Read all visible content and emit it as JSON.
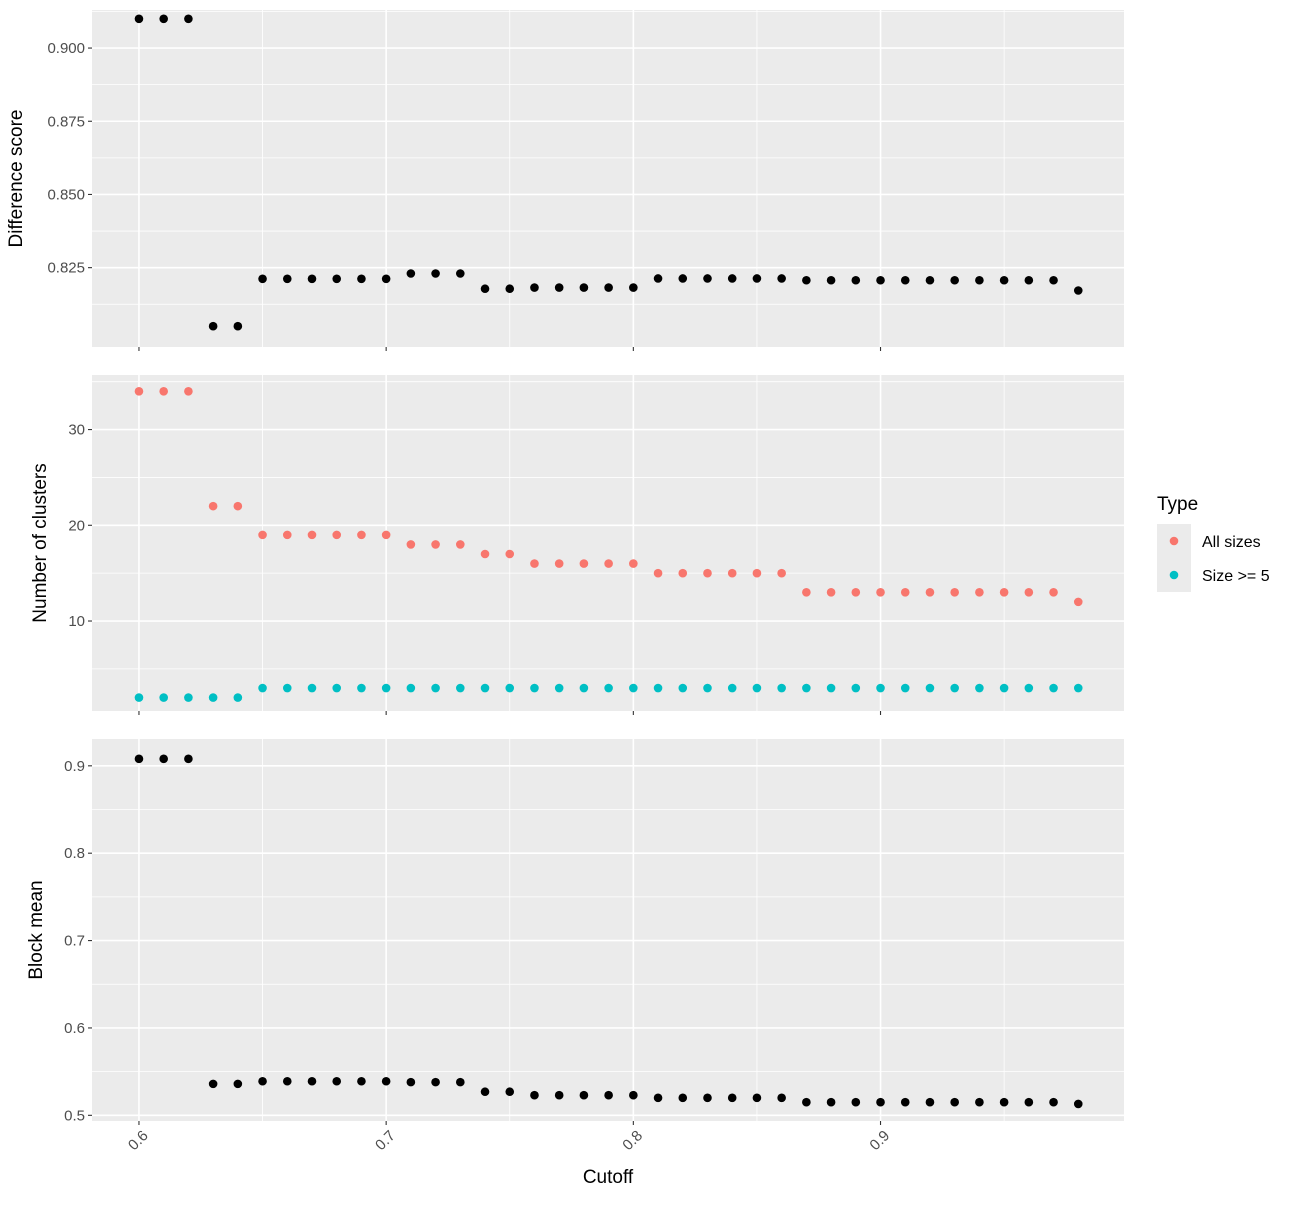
{
  "chart_data": {
    "type": "scatter",
    "xlabel": "Cutoff",
    "x_tick_labels": [
      "0.6",
      "0.7",
      "0.8",
      "0.9"
    ],
    "x_ticks": [
      0.6,
      0.7,
      0.8,
      0.9
    ],
    "xlim": [
      0.581,
      0.9985
    ],
    "grid": true,
    "legend": {
      "title": "Type",
      "placement": "right",
      "entries": [
        {
          "label": "All sizes",
          "color": "#F8766D"
        },
        {
          "label": "Size >= 5",
          "color": "#00BFC4"
        }
      ]
    },
    "colors": {
      "panel_background": "#EBEBEB",
      "grid": "#FFFFFF",
      "points": "#000000",
      "all_sizes": "#F8766D",
      "size_ge_5": "#00BFC4"
    },
    "panels": [
      {
        "ylabel": "Difference score",
        "ylim": [
          0.7979,
          0.913
        ],
        "y_ticks": [
          0.825,
          0.85,
          0.875,
          0.9
        ],
        "y_tick_labels": [
          "0.825",
          "0.850",
          "0.875",
          "0.900"
        ],
        "series": [
          {
            "color": "#000000",
            "x": [
              0.6,
              0.61,
              0.62,
              0.63,
              0.64,
              0.65,
              0.66,
              0.67,
              0.68,
              0.69,
              0.7,
              0.71,
              0.72,
              0.73,
              0.74,
              0.75,
              0.76,
              0.77,
              0.78,
              0.79,
              0.8,
              0.81,
              0.82,
              0.83,
              0.84,
              0.85,
              0.86,
              0.87,
              0.88,
              0.89,
              0.9,
              0.91,
              0.92,
              0.93,
              0.94,
              0.95,
              0.96,
              0.97,
              0.98
            ],
            "y": [
              0.91,
              0.91,
              0.91,
              0.805,
              0.805,
              0.8212,
              0.8212,
              0.8212,
              0.8212,
              0.8212,
              0.8212,
              0.823,
              0.823,
              0.823,
              0.8178,
              0.8178,
              0.8182,
              0.8182,
              0.8182,
              0.8182,
              0.8182,
              0.8213,
              0.8213,
              0.8213,
              0.8213,
              0.8213,
              0.8213,
              0.8207,
              0.8207,
              0.8207,
              0.8207,
              0.8207,
              0.8207,
              0.8207,
              0.8207,
              0.8207,
              0.8207,
              0.8207,
              0.8172
            ]
          }
        ]
      },
      {
        "ylabel": "Number of clusters",
        "ylim": [
          0.6,
          35.7
        ],
        "y_ticks": [
          10,
          20,
          30
        ],
        "y_tick_labels": [
          "10",
          "20",
          "30"
        ],
        "series": [
          {
            "name": "All sizes",
            "color": "#F8766D",
            "x": [
              0.6,
              0.61,
              0.62,
              0.63,
              0.64,
              0.65,
              0.66,
              0.67,
              0.68,
              0.69,
              0.7,
              0.71,
              0.72,
              0.73,
              0.74,
              0.75,
              0.76,
              0.77,
              0.78,
              0.79,
              0.8,
              0.81,
              0.82,
              0.83,
              0.84,
              0.85,
              0.86,
              0.87,
              0.88,
              0.89,
              0.9,
              0.91,
              0.92,
              0.93,
              0.94,
              0.95,
              0.96,
              0.97,
              0.98
            ],
            "y": [
              34,
              34,
              34,
              22,
              22,
              19,
              19,
              19,
              19,
              19,
              19,
              18,
              18,
              18,
              17,
              17,
              16,
              16,
              16,
              16,
              16,
              15,
              15,
              15,
              15,
              15,
              15,
              13,
              13,
              13,
              13,
              13,
              13,
              13,
              13,
              13,
              13,
              13,
              12
            ]
          },
          {
            "name": "Size >= 5",
            "color": "#00BFC4",
            "x": [
              0.6,
              0.61,
              0.62,
              0.63,
              0.64,
              0.65,
              0.66,
              0.67,
              0.68,
              0.69,
              0.7,
              0.71,
              0.72,
              0.73,
              0.74,
              0.75,
              0.76,
              0.77,
              0.78,
              0.79,
              0.8,
              0.81,
              0.82,
              0.83,
              0.84,
              0.85,
              0.86,
              0.87,
              0.88,
              0.89,
              0.9,
              0.91,
              0.92,
              0.93,
              0.94,
              0.95,
              0.96,
              0.97,
              0.98
            ],
            "y": [
              2,
              2,
              2,
              2,
              2,
              3,
              3,
              3,
              3,
              3,
              3,
              3,
              3,
              3,
              3,
              3,
              3,
              3,
              3,
              3,
              3,
              3,
              3,
              3,
              3,
              3,
              3,
              3,
              3,
              3,
              3,
              3,
              3,
              3,
              3,
              3,
              3,
              3,
              3
            ]
          }
        ]
      },
      {
        "ylabel": "Block mean",
        "ylim": [
          0.4935,
          0.9307
        ],
        "y_ticks": [
          0.5,
          0.6,
          0.7,
          0.8,
          0.9
        ],
        "y_tick_labels": [
          "0.5",
          "0.6",
          "0.7",
          "0.8",
          "0.9"
        ],
        "series": [
          {
            "color": "#000000",
            "x": [
              0.6,
              0.61,
              0.62,
              0.63,
              0.64,
              0.65,
              0.66,
              0.67,
              0.68,
              0.69,
              0.7,
              0.71,
              0.72,
              0.73,
              0.74,
              0.75,
              0.76,
              0.77,
              0.78,
              0.79,
              0.8,
              0.81,
              0.82,
              0.83,
              0.84,
              0.85,
              0.86,
              0.87,
              0.88,
              0.89,
              0.9,
              0.91,
              0.92,
              0.93,
              0.94,
              0.95,
              0.96,
              0.97,
              0.98
            ],
            "y": [
              0.908,
              0.908,
              0.908,
              0.536,
              0.536,
              0.539,
              0.539,
              0.539,
              0.539,
              0.539,
              0.539,
              0.538,
              0.538,
              0.538,
              0.527,
              0.527,
              0.523,
              0.523,
              0.523,
              0.523,
              0.523,
              0.52,
              0.52,
              0.52,
              0.52,
              0.52,
              0.52,
              0.515,
              0.515,
              0.515,
              0.515,
              0.515,
              0.515,
              0.515,
              0.515,
              0.515,
              0.515,
              0.515,
              0.513
            ]
          }
        ]
      }
    ]
  }
}
